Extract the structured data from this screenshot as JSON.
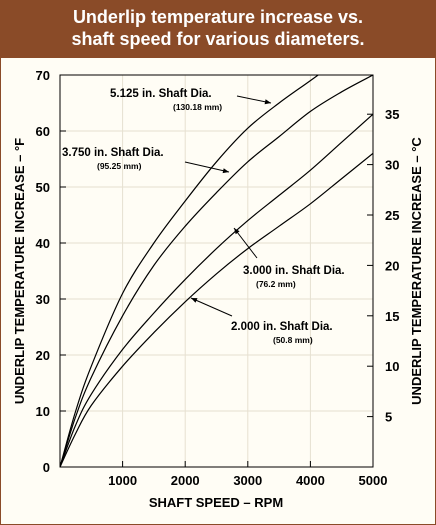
{
  "chart_data": {
    "type": "line",
    "title_line1": "Underlip temperature increase vs.",
    "title_line2": "shaft speed for various diameters.",
    "xlabel": "SHAFT SPEED – RPM",
    "ylabel_left": "UNDERLIP TEMPERATURE INCREASE – °F",
    "ylabel_right": "UNDERLIP TEMPERATURE INCREASE – °C",
    "xlim": [
      0,
      5000
    ],
    "ylim_left": [
      0,
      70
    ],
    "ylim_right": [
      0,
      38.9
    ],
    "x_ticks": [
      "1000",
      "2000",
      "3000",
      "4000",
      "5000"
    ],
    "x_tick_values": [
      1000,
      2000,
      3000,
      4000,
      5000
    ],
    "y_left_ticks": [
      "0",
      "10",
      "20",
      "30",
      "40",
      "50",
      "60",
      "70"
    ],
    "y_left_tick_values": [
      0,
      10,
      20,
      30,
      40,
      50,
      60,
      70
    ],
    "y_right_ticks": [
      "5",
      "10",
      "15",
      "20",
      "25",
      "30",
      "35"
    ],
    "y_right_tick_values": [
      5,
      10,
      15,
      20,
      25,
      30,
      35
    ],
    "grid": true,
    "series": [
      {
        "name": "5.125 in. Shaft Dia.",
        "metric": "(130.18 mm)",
        "x": [
          0,
          250,
          500,
          1000,
          1500,
          2000,
          2500,
          3000,
          3500,
          4000,
          4500
        ],
        "y": [
          0,
          10,
          18,
          31,
          40,
          47.5,
          54.5,
          60.5,
          65,
          69,
          73
        ]
      },
      {
        "name": "3.750 in. Shaft Dia.",
        "metric": "(95.25 mm)",
        "x": [
          0,
          250,
          500,
          1000,
          1500,
          2000,
          2500,
          3000,
          3500,
          4000,
          4500,
          5000
        ],
        "y": [
          0,
          9,
          16,
          27,
          36,
          43,
          49,
          54.5,
          59,
          63.5,
          67,
          70
        ]
      },
      {
        "name": "3.000 in. Shaft Dia.",
        "metric": "(76.2 mm)",
        "x": [
          0,
          250,
          500,
          1000,
          1500,
          2000,
          2500,
          3000,
          3500,
          4000,
          4500,
          5000
        ],
        "y": [
          0,
          7.5,
          13,
          21,
          27.5,
          33.5,
          39,
          44,
          48.5,
          53,
          58,
          63
        ]
      },
      {
        "name": "2.000 in. Shaft Dia.",
        "metric": "(50.8 mm)",
        "x": [
          0,
          250,
          500,
          1000,
          1500,
          2000,
          2500,
          3000,
          3500,
          4000,
          4500,
          5000
        ],
        "y": [
          0,
          6,
          11,
          18,
          24,
          29.5,
          34.5,
          39,
          43,
          47,
          51.5,
          56
        ]
      }
    ]
  }
}
